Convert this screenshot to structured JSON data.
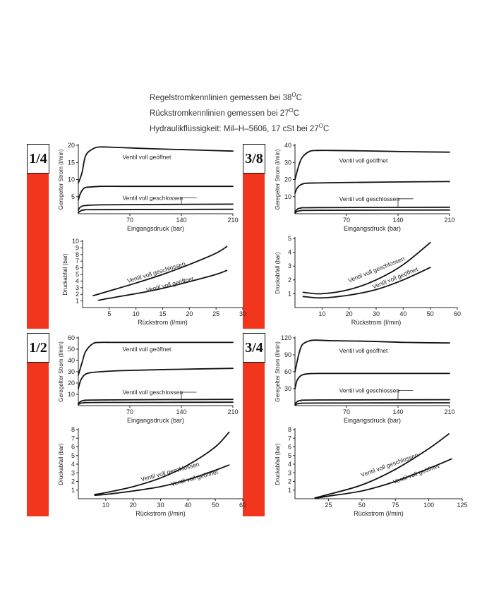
{
  "header": {
    "line1": "Regelstromkennlinien gemessen bei 38",
    "line1_deg": "O",
    "line1_unit": "C",
    "line2": "Rückstromkennlinien gemessen bei 27",
    "line2_deg": "O",
    "line2_unit": "C",
    "line3": "Hydraulikflüssigkeit: Mil–H–5606, 17 cSt bei 27",
    "line3_deg": "O",
    "line3_unit": "C"
  },
  "colors": {
    "accent_red": "#f2361d",
    "curve": "#111111"
  },
  "panels": [
    {
      "size_label": "1/4"
    },
    {
      "size_label": "3/8"
    },
    {
      "size_label": "1/2"
    },
    {
      "size_label": "3/4"
    }
  ],
  "chart_data": [
    {
      "type": "line",
      "xlabel": "Eingangsdruck (bar)",
      "ylabel": "Geregelter Strom (l/min)",
      "xlim": [
        0,
        210
      ],
      "ylim": [
        0,
        20
      ],
      "xticks": [
        70,
        140,
        210
      ],
      "yticks": [
        5,
        10,
        15,
        20
      ],
      "series": [
        {
          "x": [
            0,
            5,
            10,
            20,
            30,
            50,
            100,
            150,
            210
          ],
          "y": [
            9,
            12,
            17,
            19,
            19.5,
            19.4,
            19,
            18.7,
            18.3
          ]
        },
        {
          "x": [
            0,
            3,
            8,
            15,
            30,
            60,
            120,
            210
          ],
          "y": [
            4,
            6,
            7.5,
            7.8,
            8,
            8,
            8,
            8
          ]
        },
        {
          "x": [
            0,
            2,
            5,
            10,
            30,
            100,
            210
          ],
          "y": [
            1,
            1.8,
            2.2,
            2.4,
            2.6,
            2.7,
            2.8
          ]
        },
        {
          "x": [
            0,
            3,
            8,
            30,
            210
          ],
          "y": [
            0.3,
            0.8,
            1.1,
            1.2,
            1.3
          ]
        }
      ],
      "annotations": [
        {
          "text": "Ventil voll geöffnet",
          "x": 60,
          "y": 16
        },
        {
          "text": "Ventil voll geschlossen",
          "x": 60,
          "y": 4.0,
          "target_x": 140,
          "target_y": 2.7
        }
      ]
    },
    {
      "type": "line",
      "xlabel": "Rückstrom (l/min)",
      "ylabel": "Druckabfall (bar)",
      "xlim": [
        0,
        30
      ],
      "ylim": [
        0,
        10
      ],
      "xticks": [
        5,
        10,
        15,
        20,
        25,
        30
      ],
      "yticks": [
        1,
        2,
        3,
        4,
        5,
        6,
        7,
        8,
        9,
        10
      ],
      "series": [
        {
          "x": [
            2,
            5,
            10,
            15,
            20,
            25,
            27
          ],
          "y": [
            1.8,
            2.5,
            3.7,
            5.0,
            6.5,
            8.2,
            9.2
          ]
        },
        {
          "x": [
            3,
            5,
            10,
            15,
            20,
            25,
            27
          ],
          "y": [
            1.1,
            1.4,
            2.1,
            2.9,
            3.9,
            5.0,
            5.6
          ]
        }
      ],
      "annotations": [
        {
          "text": "Ventil voll geschlossen",
          "x": 8.5,
          "y": 3.7,
          "angle": -17
        },
        {
          "text": "Ventil voll geöffnet",
          "x": 12,
          "y": 2.3,
          "angle": -14
        }
      ]
    },
    {
      "type": "line",
      "xlabel": "Eingangsdruck (bar)",
      "ylabel": "Geregelter Strom (l/min)",
      "xlim": [
        0,
        210
      ],
      "ylim": [
        0,
        40
      ],
      "xticks": [
        70,
        140,
        210
      ],
      "yticks": [
        10,
        20,
        30,
        40
      ],
      "series": [
        {
          "x": [
            0,
            5,
            10,
            20,
            30,
            50,
            100,
            150,
            210
          ],
          "y": [
            20,
            28,
            33,
            36.5,
            37,
            37,
            36.7,
            36.3,
            36
          ]
        },
        {
          "x": [
            0,
            3,
            8,
            15,
            30,
            60,
            120,
            210
          ],
          "y": [
            12,
            15,
            17,
            17.8,
            18,
            18.2,
            18.5,
            18.8
          ]
        },
        {
          "x": [
            0,
            3,
            8,
            30,
            210
          ],
          "y": [
            1,
            2.6,
            3.3,
            3.6,
            3.8
          ]
        },
        {
          "x": [
            0,
            3,
            8,
            30,
            210
          ],
          "y": [
            0.5,
            1.3,
            1.8,
            2,
            2.2
          ]
        }
      ],
      "annotations": [
        {
          "text": "Ventil voll geöffnet",
          "x": 60,
          "y": 30
        },
        {
          "text": "Ventil voll geschlossen",
          "x": 60,
          "y": 7.5,
          "target_x": 140,
          "target_y": 3.8
        }
      ]
    },
    {
      "type": "line",
      "xlabel": "Rückstrom (l/min)",
      "ylabel": "Druckabfall (bar)",
      "xlim": [
        0,
        60
      ],
      "ylim": [
        0,
        5
      ],
      "xticks": [
        10,
        20,
        30,
        40,
        50,
        60
      ],
      "yticks": [
        1,
        2,
        3,
        4,
        5
      ],
      "series": [
        {
          "x": [
            3,
            10,
            20,
            30,
            40,
            50
          ],
          "y": [
            1.1,
            1.0,
            1.3,
            2.0,
            3.1,
            4.7
          ]
        },
        {
          "x": [
            3,
            10,
            20,
            30,
            40,
            50
          ],
          "y": [
            0.8,
            0.7,
            0.9,
            1.3,
            2.0,
            2.9
          ]
        }
      ],
      "annotations": [
        {
          "text": "Ventil voll geschlossen",
          "x": 20,
          "y": 1.8,
          "angle": -22
        },
        {
          "text": "Ventil voll geöffnet",
          "x": 29,
          "y": 1.35,
          "angle": -22
        }
      ]
    },
    {
      "type": "line",
      "xlabel": "Eingangsdruck (bar)",
      "ylabel": "Geregelter Strom (l/min)",
      "xlim": [
        0,
        210
      ],
      "ylim": [
        0,
        60
      ],
      "xticks": [
        70,
        140,
        210
      ],
      "yticks": [
        10,
        20,
        30,
        40,
        50,
        60
      ],
      "series": [
        {
          "x": [
            0,
            5,
            10,
            20,
            30,
            50,
            100,
            150,
            210
          ],
          "y": [
            27,
            38,
            48,
            55,
            56,
            56,
            56,
            56,
            56
          ]
        },
        {
          "x": [
            0,
            3,
            8,
            15,
            30,
            60,
            120,
            210
          ],
          "y": [
            15,
            22,
            27,
            29,
            30,
            31,
            32,
            33
          ]
        },
        {
          "x": [
            0,
            3,
            8,
            30,
            210
          ],
          "y": [
            2,
            3.5,
            4.5,
            5,
            5.5
          ]
        },
        {
          "x": [
            0,
            3,
            8,
            30,
            210
          ],
          "y": [
            1,
            2,
            2.5,
            2.8,
            3
          ]
        }
      ],
      "annotations": [
        {
          "text": "Ventil voll geöffnet",
          "x": 60,
          "y": 48
        },
        {
          "text": "Ventil voll geschlossen",
          "x": 60,
          "y": 10,
          "target_x": 140,
          "target_y": 5.5
        }
      ]
    },
    {
      "type": "line",
      "xlabel": "Rückstrom (l/min)",
      "ylabel": "Druckabfall (bar)",
      "xlim": [
        0,
        60
      ],
      "ylim": [
        0,
        8
      ],
      "xticks": [
        10,
        20,
        30,
        40,
        50,
        60
      ],
      "yticks": [
        1,
        2,
        3,
        4,
        5,
        6,
        7,
        8
      ],
      "series": [
        {
          "x": [
            6,
            10,
            20,
            30,
            40,
            50,
            55
          ],
          "y": [
            0.5,
            0.7,
            1.4,
            2.4,
            3.9,
            6.0,
            7.7
          ]
        },
        {
          "x": [
            6,
            10,
            20,
            30,
            40,
            50,
            55
          ],
          "y": [
            0.4,
            0.5,
            0.9,
            1.4,
            2.2,
            3.3,
            3.9
          ]
        }
      ],
      "annotations": [
        {
          "text": "Ventil voll geschlossen",
          "x": 23,
          "y": 2.0,
          "angle": -15
        },
        {
          "text": "Ventil voll geöffnet",
          "x": 34,
          "y": 1.45,
          "angle": -15
        }
      ]
    },
    {
      "type": "line",
      "xlabel": "Eingangsdruck (bar)",
      "ylabel": "Geregelter Strom (l/min)",
      "xlim": [
        0,
        210
      ],
      "ylim": [
        0,
        120
      ],
      "xticks": [
        70,
        140,
        210
      ],
      "yticks": [
        30,
        60,
        90,
        120
      ],
      "series": [
        {
          "x": [
            0,
            5,
            10,
            20,
            30,
            50,
            100,
            150,
            210
          ],
          "y": [
            60,
            90,
            108,
            115,
            116,
            115,
            114,
            112,
            111
          ]
        },
        {
          "x": [
            0,
            3,
            8,
            15,
            30,
            60,
            120,
            210
          ],
          "y": [
            30,
            45,
            53,
            56,
            57,
            57,
            57,
            57
          ]
        },
        {
          "x": [
            0,
            3,
            8,
            30,
            210
          ],
          "y": [
            3,
            7,
            9,
            10,
            10.5
          ]
        },
        {
          "x": [
            0,
            3,
            8,
            30,
            210
          ],
          "y": [
            1,
            3,
            4,
            4.5,
            5
          ]
        }
      ],
      "annotations": [
        {
          "text": "Ventil voll geöffnet",
          "x": 60,
          "y": 94
        },
        {
          "text": "Ventil voll geschlossen",
          "x": 60,
          "y": 23,
          "target_x": 140,
          "target_y": 10.5
        }
      ]
    },
    {
      "type": "line",
      "xlabel": "Rückstrom (l/min)",
      "ylabel": "Druckabfall (bar)",
      "xlim": [
        0,
        125
      ],
      "ylim": [
        0,
        8
      ],
      "xticks": [
        25,
        50,
        75,
        100,
        125
      ],
      "yticks": [
        1,
        2,
        3,
        4,
        5,
        6,
        7,
        8
      ],
      "series": [
        {
          "x": [
            15,
            25,
            50,
            75,
            100,
            115
          ],
          "y": [
            0.1,
            0.5,
            1.6,
            3.4,
            5.8,
            7.5
          ]
        },
        {
          "x": [
            15,
            25,
            50,
            75,
            100,
            117
          ],
          "y": [
            0.05,
            0.3,
            0.9,
            2.0,
            3.5,
            4.6
          ]
        }
      ],
      "annotations": [
        {
          "text": "Ventil voll geschlossen",
          "x": 50,
          "y": 2.5,
          "angle": -20
        },
        {
          "text": "Ventil voll geöffnet",
          "x": 74,
          "y": 1.7,
          "angle": -20
        }
      ]
    }
  ]
}
